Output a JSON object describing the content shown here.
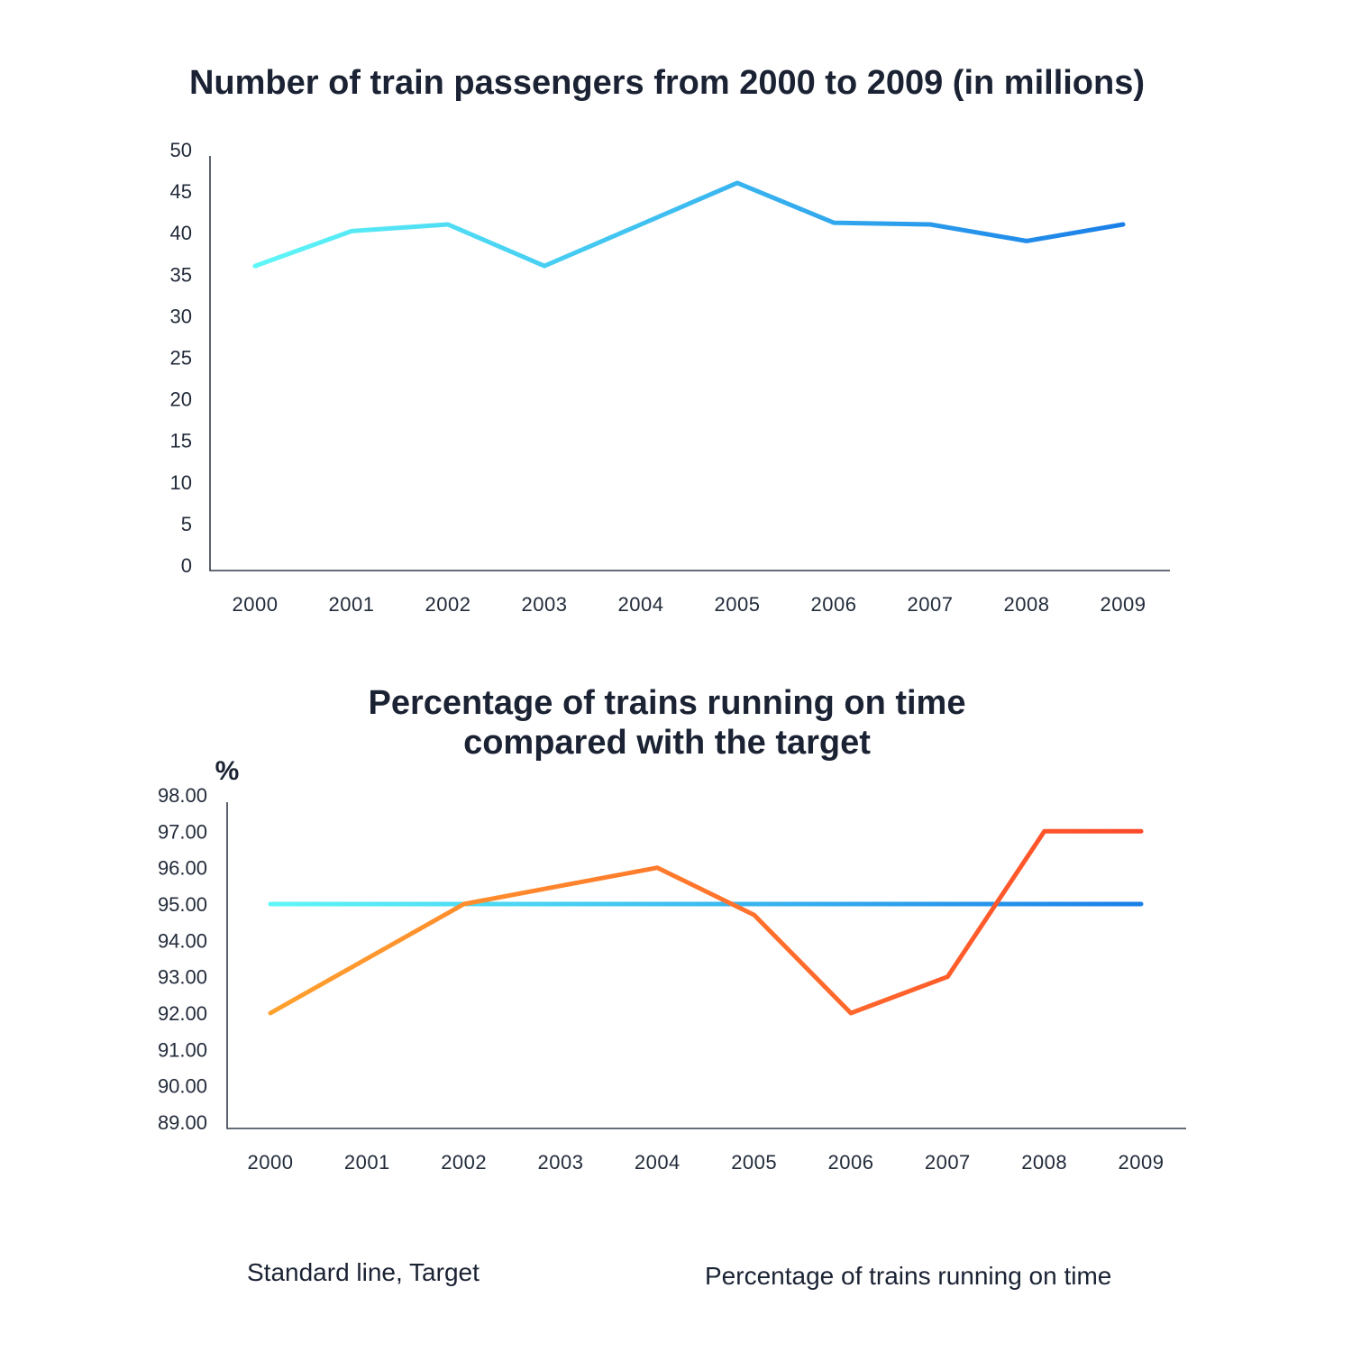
{
  "colors": {
    "passengers_start": "#5ef7f7",
    "passengers_end": "#1a7fe8",
    "target_start": "#5ef7f7",
    "target_end": "#1a7fe8",
    "ontime_start": "#ffa12e",
    "ontime_end": "#ff4a2a",
    "text": "#1a2233"
  },
  "chart_data": [
    {
      "type": "line",
      "title": "Number of train passengers from 2000 to 2009 (in millions)",
      "categories": [
        "2000",
        "2001",
        "2002",
        "2003",
        "2004",
        "2005",
        "2006",
        "2007",
        "2008",
        "2009"
      ],
      "series": [
        {
          "values": [
            36,
            40.2,
            41,
            36,
            41,
            46,
            41.2,
            41,
            39,
            41
          ]
        }
      ],
      "yticks": [
        "0",
        "5",
        "10",
        "15",
        "20",
        "25",
        "30",
        "35",
        "40",
        "45",
        "50"
      ],
      "ylim": [
        0,
        50
      ],
      "xlabel": "",
      "ylabel": "",
      "grid": false
    },
    {
      "type": "line",
      "title_lines": [
        "Percentage of trains running on time",
        "compared with the target"
      ],
      "categories": [
        "2000",
        "2001",
        "2002",
        "2003",
        "2004",
        "2005",
        "2006",
        "2007",
        "2008",
        "2009"
      ],
      "series": [
        {
          "name": "Standard line, Target",
          "values": [
            95,
            95,
            95,
            95,
            95,
            95,
            95,
            95,
            95,
            95
          ]
        },
        {
          "name": "Percentage of trains running on time",
          "values": [
            92,
            93.5,
            95,
            95.5,
            96,
            94.7,
            92,
            93,
            97,
            97
          ]
        }
      ],
      "yunit": "%",
      "yticks": [
        "89.00",
        "90.00",
        "91.00",
        "92.00",
        "93.00",
        "94.00",
        "95.00",
        "96.00",
        "97.00",
        "98.00"
      ],
      "ylim": [
        89,
        98
      ],
      "xlabel": "",
      "ylabel": "",
      "grid": false,
      "legend_position": "bottom"
    }
  ]
}
